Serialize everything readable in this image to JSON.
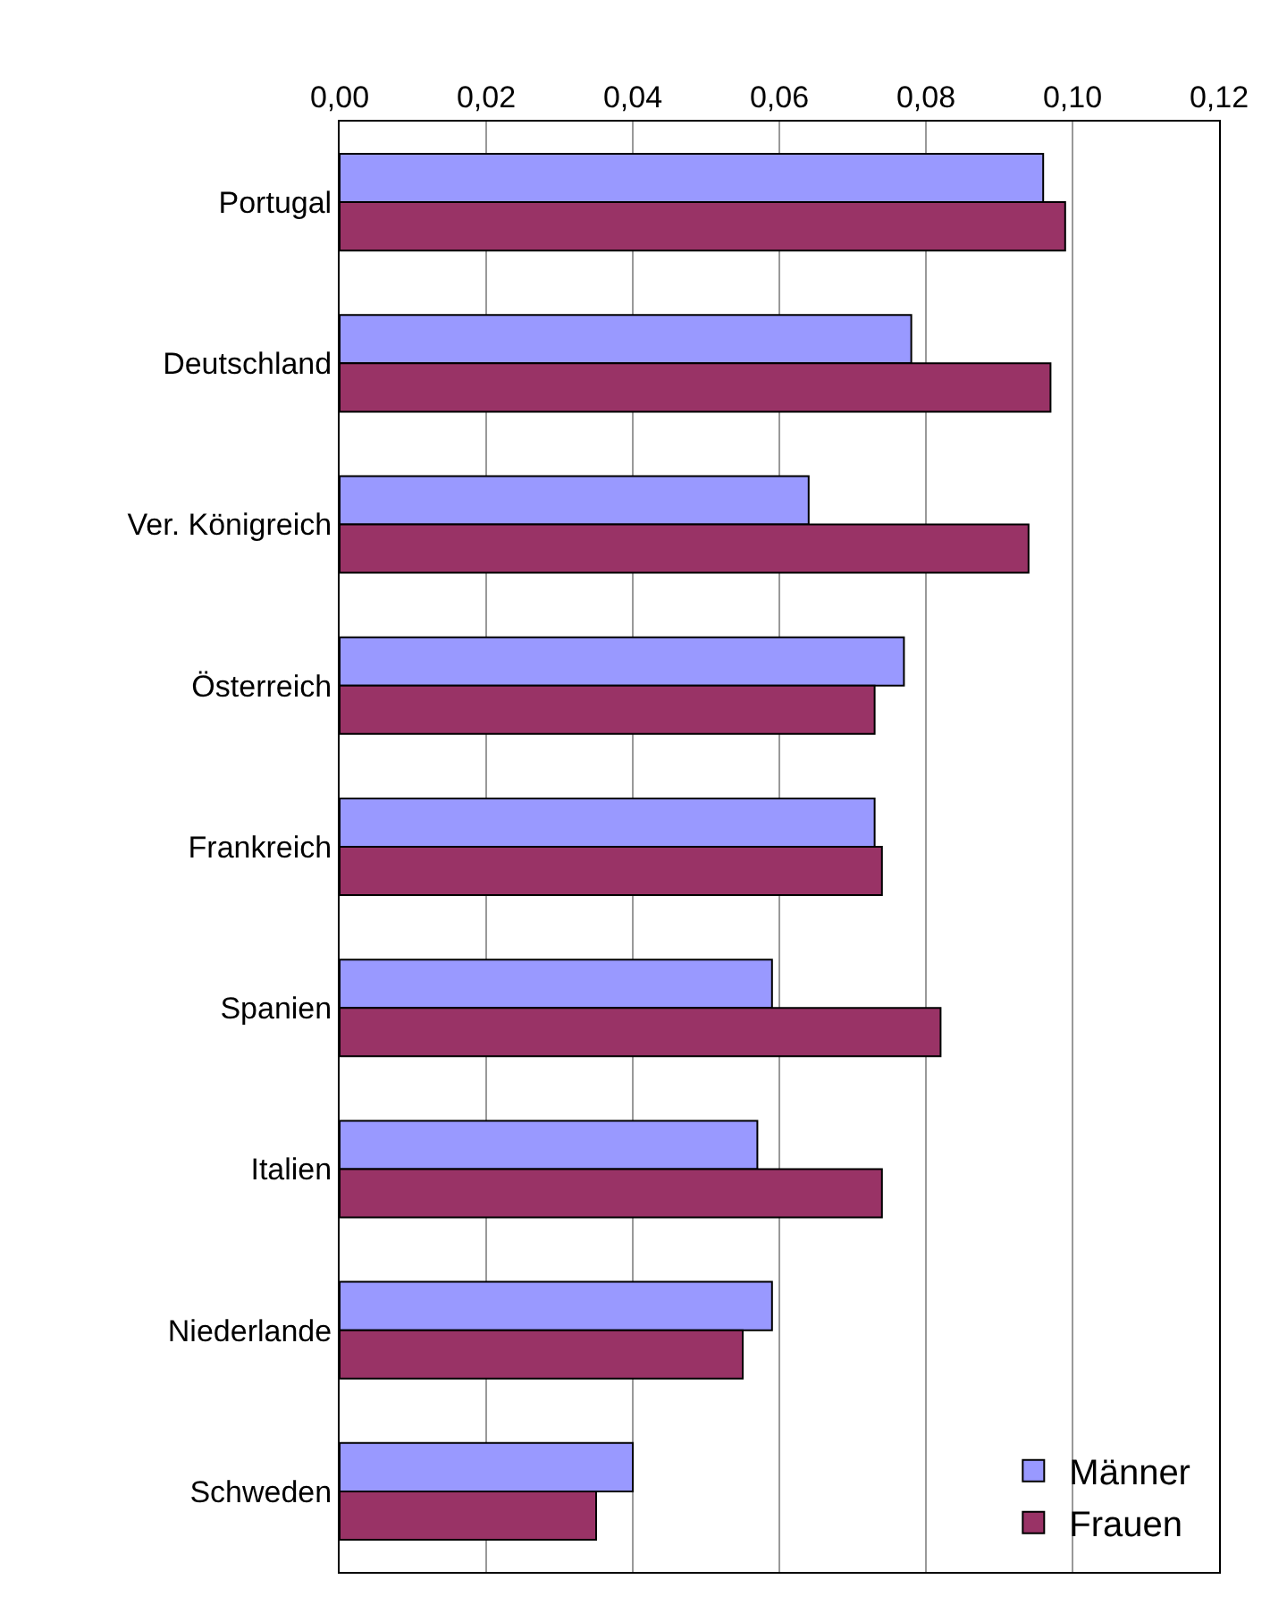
{
  "chart_data": {
    "type": "bar",
    "orientation": "horizontal",
    "categories": [
      "Portugal",
      "Deutschland",
      "Ver. Königreich",
      "Österreich",
      "Frankreich",
      "Spanien",
      "Italien",
      "Niederlande",
      "Schweden"
    ],
    "series": [
      {
        "name": "Männer",
        "color": "#9999ff",
        "values": [
          0.096,
          0.078,
          0.064,
          0.077,
          0.073,
          0.059,
          0.057,
          0.059,
          0.04
        ]
      },
      {
        "name": "Frauen",
        "color": "#993366",
        "values": [
          0.099,
          0.097,
          0.094,
          0.073,
          0.074,
          0.082,
          0.074,
          0.055,
          0.035
        ]
      }
    ],
    "xlim": [
      0,
      0.12
    ],
    "xticks": [
      {
        "value": 0,
        "label": "0,00"
      },
      {
        "value": 0.02,
        "label": "0,02"
      },
      {
        "value": 0.04,
        "label": "0,04"
      },
      {
        "value": 0.06,
        "label": "0,06"
      },
      {
        "value": 0.08,
        "label": "0,08"
      },
      {
        "value": 0.1,
        "label": "0,10"
      },
      {
        "value": 0.12,
        "label": "0,12"
      }
    ],
    "grid": "x",
    "legend": "bottom right"
  }
}
